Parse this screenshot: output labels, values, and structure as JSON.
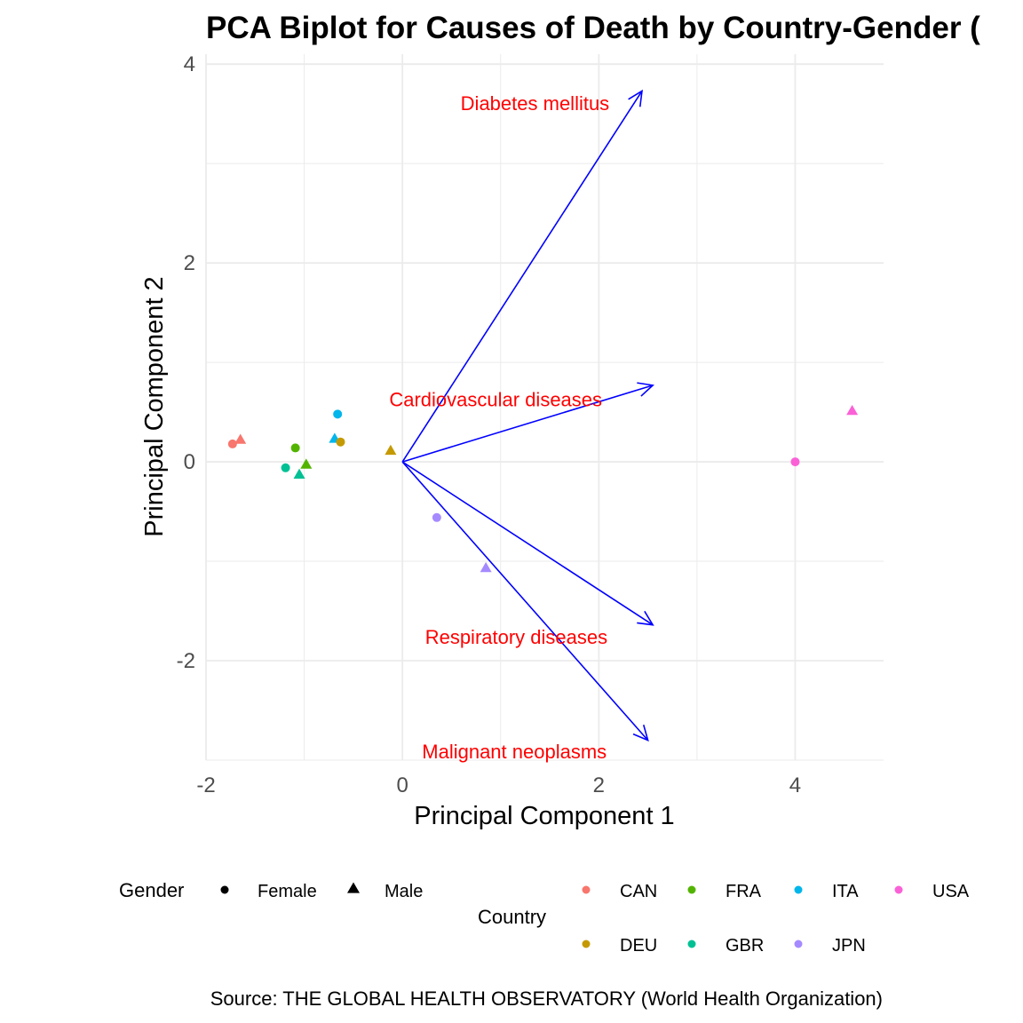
{
  "chart_data": {
    "type": "scatter",
    "title": "PCA Biplot for Causes of Death by Country-Gender (",
    "xlabel": "Principal Component 1",
    "ylabel": "Principal Component 2",
    "xlim": [
      -2.0,
      4.9
    ],
    "ylim": [
      -3.0,
      4.1
    ],
    "x_ticks": [
      -2,
      0,
      2,
      4
    ],
    "x_tick_labels": [
      "-2",
      "0",
      "2",
      "4"
    ],
    "y_ticks": [
      -2,
      0,
      2,
      4
    ],
    "y_tick_labels": [
      "-2",
      "0",
      "2",
      "4"
    ],
    "grid": true,
    "caption": "Source: THE GLOBAL HEALTH OBSERVATORY (World Health Organization)",
    "colors": {
      "CAN": "#F8766D",
      "DEU": "#C49A00",
      "FRA": "#53B400",
      "GBR": "#00C094",
      "ITA": "#00B6EB",
      "JPN": "#A58AFF",
      "USA": "#FB61D7",
      "arrow": "#0000FF",
      "arrow_label": "#FF0000",
      "grid": "#EBEBEB"
    },
    "points": [
      {
        "country": "CAN",
        "gender": "Female",
        "x": -1.73,
        "y": 0.18
      },
      {
        "country": "CAN",
        "gender": "Male",
        "x": -1.65,
        "y": 0.22
      },
      {
        "country": "FRA",
        "gender": "Female",
        "x": -1.09,
        "y": 0.14
      },
      {
        "country": "FRA",
        "gender": "Male",
        "x": -0.98,
        "y": -0.03
      },
      {
        "country": "GBR",
        "gender": "Female",
        "x": -1.19,
        "y": -0.06
      },
      {
        "country": "GBR",
        "gender": "Male",
        "x": -1.05,
        "y": -0.13
      },
      {
        "country": "ITA",
        "gender": "Female",
        "x": -0.66,
        "y": 0.48
      },
      {
        "country": "ITA",
        "gender": "Male",
        "x": -0.69,
        "y": 0.23
      },
      {
        "country": "DEU",
        "gender": "Female",
        "x": -0.63,
        "y": 0.2
      },
      {
        "country": "DEU",
        "gender": "Male",
        "x": -0.12,
        "y": 0.11
      },
      {
        "country": "JPN",
        "gender": "Female",
        "x": 0.35,
        "y": -0.56
      },
      {
        "country": "JPN",
        "gender": "Male",
        "x": 0.85,
        "y": -1.07
      },
      {
        "country": "USA",
        "gender": "Female",
        "x": 4.0,
        "y": 0.0
      },
      {
        "country": "USA",
        "gender": "Male",
        "x": 4.58,
        "y": 0.51
      }
    ],
    "loadings": [
      {
        "name": "Diabetes mellitus",
        "x": 2.44,
        "y": 3.73,
        "label_x": 1.35,
        "label_y": 3.61
      },
      {
        "name": "Cardiovascular diseases",
        "x": 2.55,
        "y": 0.77,
        "label_x": 0.95,
        "label_y": 0.63
      },
      {
        "name": "Respiratory diseases",
        "x": 2.55,
        "y": -1.64,
        "label_x": 1.16,
        "label_y": -1.76
      },
      {
        "name": "Malignant neoplasms",
        "x": 2.5,
        "y": -2.8,
        "label_x": 1.14,
        "label_y": -2.91
      }
    ],
    "legend": {
      "gender_title": "Gender",
      "gender_items": [
        {
          "label": "Female",
          "shape": "circle"
        },
        {
          "label": "Male",
          "shape": "triangle"
        }
      ],
      "country_title": "Country",
      "country_items": [
        "CAN",
        "FRA",
        "ITA",
        "USA",
        "DEU",
        "GBR",
        "JPN"
      ],
      "placement": "bottom"
    }
  }
}
